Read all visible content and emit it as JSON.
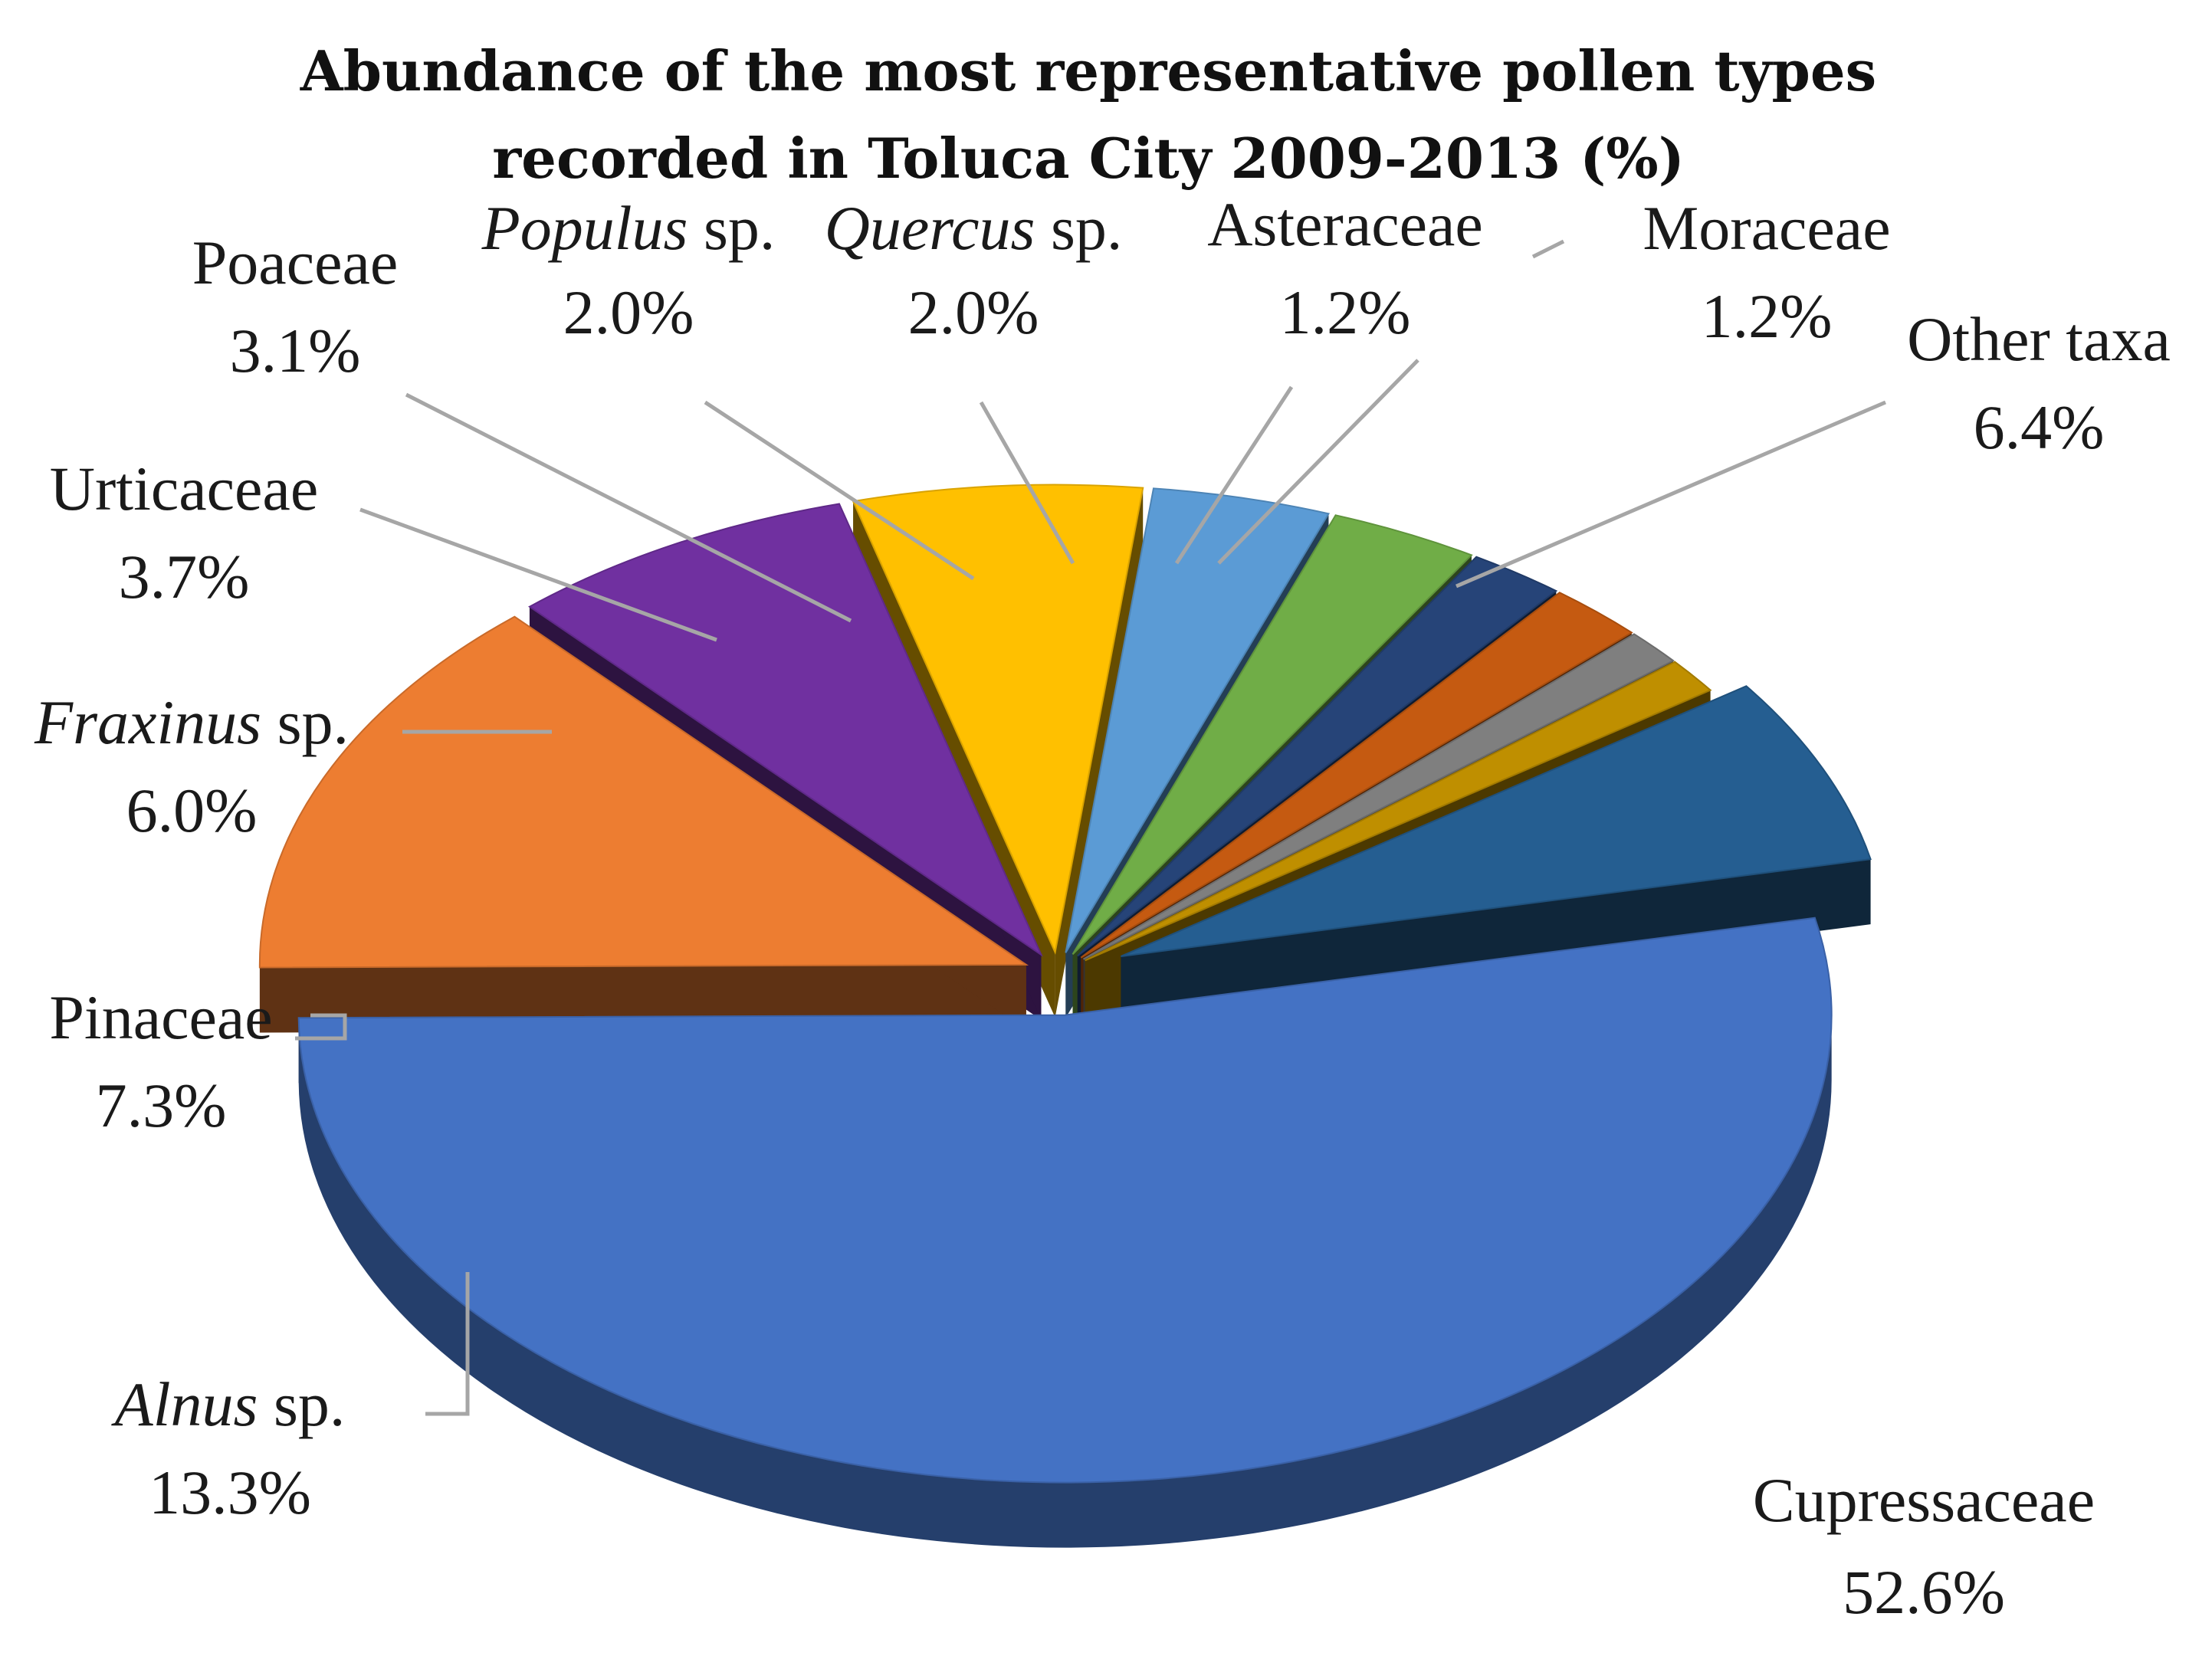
{
  "chart_data": {
    "type": "pie",
    "title_lines": [
      "Abundance of the most representative pollen types",
      "recorded in Toluca City 2009-2013 (%)"
    ],
    "slices": [
      {
        "name": "Cupressaceae",
        "name_italic": "",
        "name_suffix": "",
        "value_label": "52.6%",
        "value": 52.6,
        "color": "#4472C4"
      },
      {
        "name": "",
        "name_italic": "Alnus",
        "name_suffix": " sp.",
        "value_label": "13.3%",
        "value": 13.3,
        "color": "#ED7D31"
      },
      {
        "name": "Pinaceae",
        "name_italic": "",
        "name_suffix": "",
        "value_label": "7.3%",
        "value": 7.3,
        "color": "#7030A0"
      },
      {
        "name": "",
        "name_italic": "Fraxinus",
        "name_suffix": " sp.",
        "value_label": "6.0%",
        "value": 6.0,
        "color": "#FFC000"
      },
      {
        "name": "Urticaceae",
        "name_italic": "",
        "name_suffix": "",
        "value_label": "3.7%",
        "value": 3.7,
        "color": "#5B9BD5"
      },
      {
        "name": "Poaceae",
        "name_italic": "",
        "name_suffix": "",
        "value_label": "3.1%",
        "value": 3.1,
        "color": "#70AD47"
      },
      {
        "name": "",
        "name_italic": "Populus",
        "name_suffix": " sp.",
        "value_label": "2.0%",
        "value": 2.0,
        "color": "#264478"
      },
      {
        "name": "",
        "name_italic": "Quercus",
        "name_suffix": " sp.",
        "value_label": "2.0%",
        "value": 2.0,
        "color": "#C55A11"
      },
      {
        "name": "Asteraceae",
        "name_italic": "",
        "name_suffix": "",
        "value_label": "1.2%",
        "value": 1.2,
        "color": "#7F7F7F"
      },
      {
        "name": "Moraceae",
        "name_italic": "",
        "name_suffix": "",
        "value_label": "1.2%",
        "value": 1.2,
        "color": "#BF8F00"
      },
      {
        "name": "Other taxa",
        "name_italic": "",
        "name_suffix": "",
        "value_label": "6.4%",
        "value": 6.4,
        "color": "#255E91"
      }
    ],
    "exploded": true,
    "style": "3d"
  }
}
